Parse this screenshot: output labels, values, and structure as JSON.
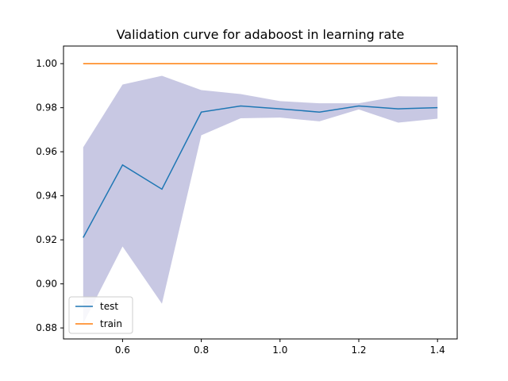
{
  "chart_data": {
    "type": "line",
    "title": "Validation curve for adaboost in learning rate",
    "xlabel": "",
    "ylabel": "",
    "x": [
      0.5,
      0.6,
      0.7,
      0.8,
      0.9,
      1.0,
      1.1,
      1.2,
      1.3,
      1.4
    ],
    "xlim": [
      0.45,
      1.45
    ],
    "ylim": [
      0.875,
      1.008
    ],
    "xticks": [
      0.6,
      0.8,
      1.0,
      1.2,
      1.4
    ],
    "xtick_labels": [
      "0.6",
      "0.8",
      "1.0",
      "1.2",
      "1.4"
    ],
    "yticks": [
      0.88,
      0.9,
      0.92,
      0.94,
      0.96,
      0.98,
      1.0
    ],
    "ytick_labels": [
      "0.88",
      "0.90",
      "0.92",
      "0.94",
      "0.96",
      "0.98",
      "1.00"
    ],
    "grid": false,
    "legend_position": "lower-left",
    "series": [
      {
        "name": "test",
        "color": "#1f77b4",
        "values": [
          0.921,
          0.954,
          0.943,
          0.978,
          0.9808,
          0.9795,
          0.978,
          0.9808,
          0.9795,
          0.98
        ],
        "band_upper": [
          0.962,
          0.9905,
          0.9945,
          0.988,
          0.9862,
          0.983,
          0.982,
          0.982,
          0.9852,
          0.985
        ],
        "band_lower": [
          0.882,
          0.917,
          0.891,
          0.9675,
          0.9752,
          0.9755,
          0.9738,
          0.9792,
          0.9732,
          0.975
        ],
        "band_color": "#c8c8e3"
      },
      {
        "name": "train",
        "color": "#ff7f0e",
        "values": [
          1.0,
          1.0,
          1.0,
          1.0,
          1.0,
          1.0,
          1.0,
          1.0,
          1.0,
          1.0
        ]
      }
    ]
  }
}
